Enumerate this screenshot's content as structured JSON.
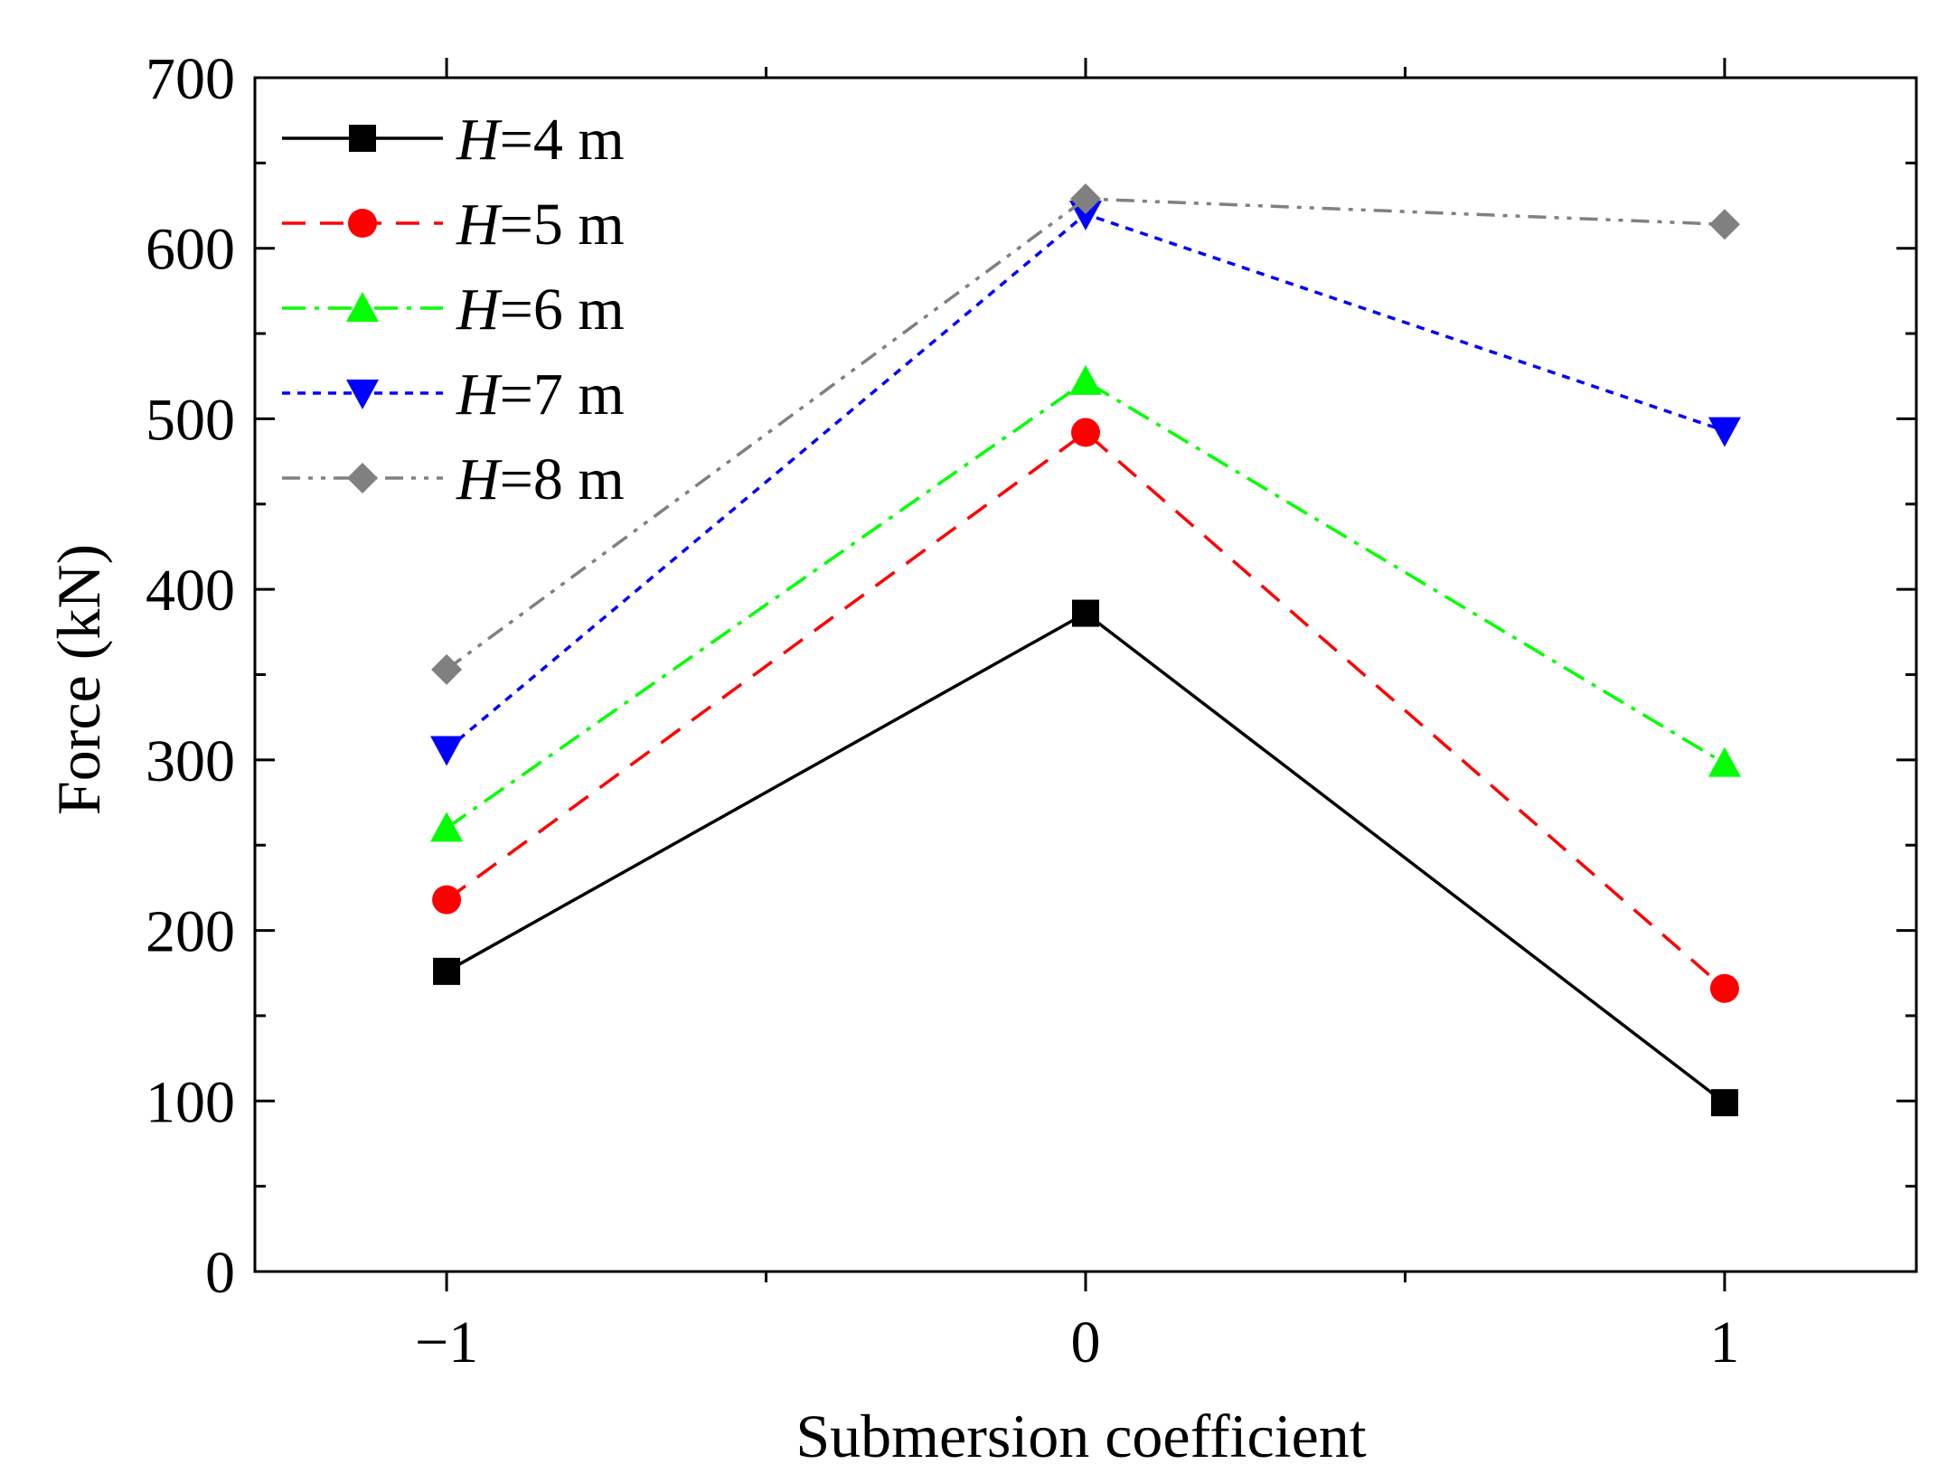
{
  "chart_data": {
    "type": "line",
    "title": "",
    "xlabel": "Submersion coefficient",
    "ylabel": "Force (kN)",
    "x": [
      -1,
      0,
      1
    ],
    "x_tick_labels": [
      "−1",
      "0",
      "1"
    ],
    "xlim": [
      -1.3,
      1.3
    ],
    "ylim": [
      0,
      700
    ],
    "y_tick_values": [
      0,
      100,
      200,
      300,
      400,
      500,
      600,
      700
    ],
    "y_tick_labels": [
      "0",
      "100",
      "200",
      "300",
      "400",
      "500",
      "600",
      "700"
    ],
    "grid": false,
    "legend_position": "top-left",
    "series": [
      {
        "name": "H=4 m",
        "name_var": "H",
        "name_rest": "=4 m",
        "color": "#000000",
        "dash": "solid",
        "marker": "square",
        "values": [
          176,
          386,
          99
        ]
      },
      {
        "name": "H=5 m",
        "name_var": "H",
        "name_rest": "=5 m",
        "color": "#ff0000",
        "dash": "dashed",
        "marker": "circle",
        "values": [
          218,
          492,
          166
        ]
      },
      {
        "name": "H=6 m",
        "name_var": "H",
        "name_rest": "=6 m",
        "color": "#00ff00",
        "dash": "dashdot",
        "marker": "triangle-up",
        "values": [
          260,
          522,
          298
        ]
      },
      {
        "name": "H=7 m",
        "name_var": "H",
        "name_rest": "=7 m",
        "color": "#0000ff",
        "dash": "dotted",
        "marker": "triangle-down",
        "values": [
          306,
          620,
          493
        ]
      },
      {
        "name": "H=8 m",
        "name_var": "H",
        "name_rest": "=8 m",
        "color": "#808080",
        "dash": "dashdotdot",
        "marker": "diamond",
        "values": [
          353,
          629,
          614
        ]
      }
    ]
  }
}
